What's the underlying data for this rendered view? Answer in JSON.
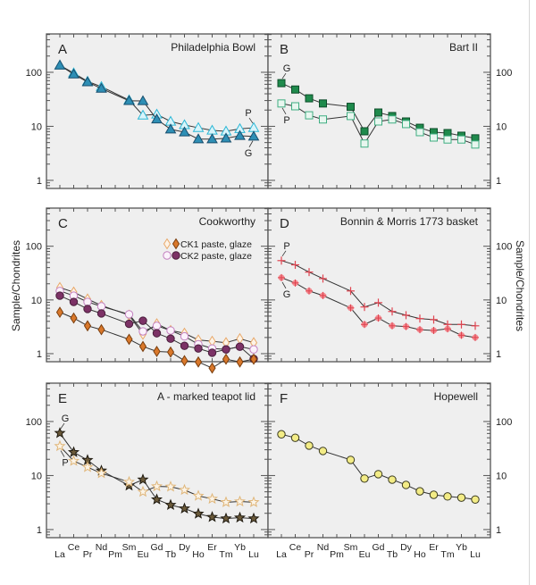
{
  "figure": {
    "ylabel_left": "Sample/Chondrites",
    "ylabel_right": "Sample/Chondrites",
    "elements": [
      "La",
      "Ce",
      "Pr",
      "Nd",
      "Pm",
      "Sm",
      "Eu",
      "Gd",
      "Tb",
      "Dy",
      "Ho",
      "Er",
      "Tm",
      "Yb",
      "Lu"
    ],
    "y_tick_labels": [
      "1",
      "10",
      "100"
    ],
    "colors": {
      "panel_bg": "#efefef",
      "axis": "#555555",
      "line": "#333333"
    }
  },
  "chart_data": [
    {
      "type": "line",
      "panel": "A",
      "title": "Philadelphia Bowl",
      "yscale": "log",
      "ylim": [
        0.7,
        510
      ],
      "yticks": [
        1,
        10,
        100
      ],
      "categories": [
        "La",
        "Ce",
        "Pr",
        "Nd",
        "Pm",
        "Sm",
        "Eu",
        "Gd",
        "Tb",
        "Dy",
        "Ho",
        "Er",
        "Tm",
        "Yb",
        "Lu"
      ],
      "series": [
        {
          "name": "P",
          "marker": "triangle-open",
          "color": "#2bb7d6",
          "fill": "#d9f4fa",
          "values": [
            135,
            97,
            68,
            54,
            null,
            30.6,
            16,
            16.7,
            12.3,
            10.6,
            9.4,
            8.4,
            8.1,
            9,
            9.4
          ]
        },
        {
          "name": "G",
          "marker": "triangle-filled",
          "color": "#1a4f6e",
          "fill": "#2e8fb5",
          "values": [
            135,
            92,
            66,
            50,
            null,
            29.6,
            29.5,
            13.5,
            8.8,
            7.8,
            5.8,
            5.8,
            6,
            6.7,
            6.5
          ]
        }
      ],
      "annotations": [
        {
          "text": "P",
          "series": "P",
          "at": "Lu",
          "position": "above"
        },
        {
          "text": "G",
          "series": "G",
          "at": "Lu",
          "position": "below"
        }
      ]
    },
    {
      "type": "line",
      "panel": "B",
      "title": "Bart II",
      "yscale": "log",
      "ylim": [
        0.7,
        510
      ],
      "yticks": [
        1,
        10,
        100
      ],
      "categories": [
        "La",
        "Ce",
        "Pr",
        "Nd",
        "Pm",
        "Sm",
        "Eu",
        "Gd",
        "Tb",
        "Dy",
        "Ho",
        "Er",
        "Tm",
        "Yb",
        "Lu"
      ],
      "series": [
        {
          "name": "G",
          "marker": "square-filled",
          "color": "#0d4d2a",
          "fill": "#1f8a4c",
          "values": [
            63,
            48,
            33,
            26.5,
            null,
            23,
            8.1,
            18,
            15.5,
            12.3,
            9.4,
            7.8,
            7.5,
            6.7,
            6
          ]
        },
        {
          "name": "P",
          "marker": "square-open",
          "color": "#3fae82",
          "fill": "#e8f6ef",
          "values": [
            26.5,
            23.5,
            16,
            13.4,
            null,
            15.5,
            4.8,
            12.3,
            13.4,
            11,
            7.8,
            6.2,
            5.7,
            5.7,
            4.6
          ]
        }
      ],
      "annotations": [
        {
          "text": "G",
          "series": "G",
          "at": "La",
          "position": "above"
        },
        {
          "text": "P",
          "series": "P",
          "at": "La",
          "position": "below"
        }
      ]
    },
    {
      "type": "line",
      "panel": "C",
      "title": "Cookworthy",
      "yscale": "log",
      "ylim": [
        0.7,
        510
      ],
      "yticks": [
        1,
        10,
        100
      ],
      "categories": [
        "La",
        "Ce",
        "Pr",
        "Nd",
        "Pm",
        "Sm",
        "Eu",
        "Gd",
        "Tb",
        "Dy",
        "Ho",
        "Er",
        "Tm",
        "Yb",
        "Lu"
      ],
      "legend": [
        {
          "label": "CK1 paste, glaze",
          "markers": [
            "diamond-open-orange",
            "diamond-filled-orange"
          ]
        },
        {
          "label": "CK2 paste, glaze",
          "markers": [
            "circle-open-purple",
            "circle-filled-purple"
          ]
        }
      ],
      "series": [
        {
          "name": "CK1 paste",
          "marker": "diamond-open",
          "color": "#e8a86a",
          "fill": "#fdf3e6",
          "values": [
            17,
            14,
            10.4,
            7.9,
            null,
            5.2,
            2.3,
            3.6,
            2.7,
            2.4,
            1.8,
            1.7,
            1.6,
            1.9,
            1.6
          ]
        },
        {
          "name": "CK2 paste",
          "marker": "circle-open",
          "color": "#c27fbf",
          "fill": "#fbf2fb",
          "values": [
            14.7,
            12,
            9.2,
            7.6,
            null,
            5.4,
            2.6,
            3.3,
            2.7,
            2.1,
            1.5,
            1.25,
            1.2,
            1.35,
            1.2
          ]
        },
        {
          "name": "CK2 glaze",
          "marker": "circle-filled",
          "color": "#4a1e3c",
          "fill": "#7c3266",
          "values": [
            12,
            9.2,
            6.8,
            5.6,
            null,
            3.6,
            4.1,
            2.4,
            1.9,
            1.4,
            1.25,
            1.04,
            1.2,
            1.35,
            0.8
          ]
        },
        {
          "name": "CK1 glaze",
          "marker": "diamond-filled",
          "color": "#7a3e0e",
          "fill": "#d9782b",
          "values": [
            5.9,
            4.6,
            3.3,
            2.8,
            null,
            1.85,
            1.36,
            1.1,
            1.07,
            0.74,
            0.7,
            0.54,
            0.79,
            0.7,
            0.79
          ]
        }
      ]
    },
    {
      "type": "line",
      "panel": "D",
      "title": "Bonnin & Morris 1773 basket",
      "yscale": "log",
      "ylim": [
        0.7,
        510
      ],
      "yticks": [
        1,
        10,
        100
      ],
      "categories": [
        "La",
        "Ce",
        "Pr",
        "Nd",
        "Pm",
        "Sm",
        "Eu",
        "Gd",
        "Tb",
        "Dy",
        "Ho",
        "Er",
        "Tm",
        "Yb",
        "Lu"
      ],
      "series": [
        {
          "name": "P",
          "marker": "plus",
          "color": "#e0434f",
          "fill": "none",
          "values": [
            54,
            45,
            33,
            25,
            null,
            14.7,
            7.4,
            8.9,
            6.1,
            5.2,
            4.5,
            4.3,
            3.5,
            3.5,
            3.3
          ]
        },
        {
          "name": "G",
          "marker": "asterisk-dot",
          "color": "#e0434f",
          "fill": "#f28a90",
          "values": [
            26,
            20.7,
            14.7,
            12.1,
            null,
            7.1,
            3.5,
            4.6,
            3.3,
            3.2,
            2.8,
            2.7,
            2.9,
            2.2,
            2.0
          ]
        }
      ],
      "annotations": [
        {
          "text": "P",
          "series": "P",
          "at": "La",
          "position": "above"
        },
        {
          "text": "G",
          "series": "G",
          "at": "La",
          "position": "below"
        }
      ]
    },
    {
      "type": "line",
      "panel": "E",
      "title": "A - marked teapot lid",
      "yscale": "log",
      "ylim": [
        0.7,
        510
      ],
      "yticks": [
        1,
        10,
        100
      ],
      "categories": [
        "La",
        "Ce",
        "Pr",
        "Nd",
        "Pm",
        "Sm",
        "Eu",
        "Gd",
        "Tb",
        "Dy",
        "Ho",
        "Er",
        "Tm",
        "Yb",
        "Lu"
      ],
      "series": [
        {
          "name": "G",
          "marker": "star-filled",
          "color": "#1f1a10",
          "fill": "#6b5a3a",
          "values": [
            61,
            27,
            19.3,
            12.3,
            null,
            6.5,
            8.4,
            3.6,
            2.85,
            2.45,
            1.96,
            1.7,
            1.6,
            1.66,
            1.6
          ]
        },
        {
          "name": "P",
          "marker": "star-open",
          "color": "#e0b679",
          "fill": "#fbf4e8",
          "values": [
            35,
            18.6,
            14.3,
            11,
            null,
            7.6,
            5,
            6.3,
            6.2,
            5.4,
            4.2,
            3.7,
            3.2,
            3.3,
            3.2
          ]
        }
      ],
      "annotations": [
        {
          "text": "G",
          "series": "G",
          "at": "La",
          "position": "above"
        },
        {
          "text": "P",
          "series": "P",
          "at": "La",
          "position": "below"
        }
      ]
    },
    {
      "type": "line",
      "panel": "F",
      "title": "Hopewell",
      "yscale": "log",
      "ylim": [
        0.7,
        510
      ],
      "yticks": [
        1,
        10,
        100
      ],
      "categories": [
        "La",
        "Ce",
        "Pr",
        "Nd",
        "Pm",
        "Sm",
        "Eu",
        "Gd",
        "Tb",
        "Dy",
        "Ho",
        "Er",
        "Tm",
        "Yb",
        "Lu"
      ],
      "series": [
        {
          "name": "Hopewell",
          "marker": "circle-filled",
          "color": "#3a3a20",
          "fill": "#f3ec86",
          "values": [
            58,
            50,
            35.8,
            28.5,
            null,
            19.5,
            8.8,
            10.6,
            8.4,
            6.7,
            5.1,
            4.4,
            4.1,
            3.9,
            3.6
          ]
        }
      ]
    }
  ]
}
